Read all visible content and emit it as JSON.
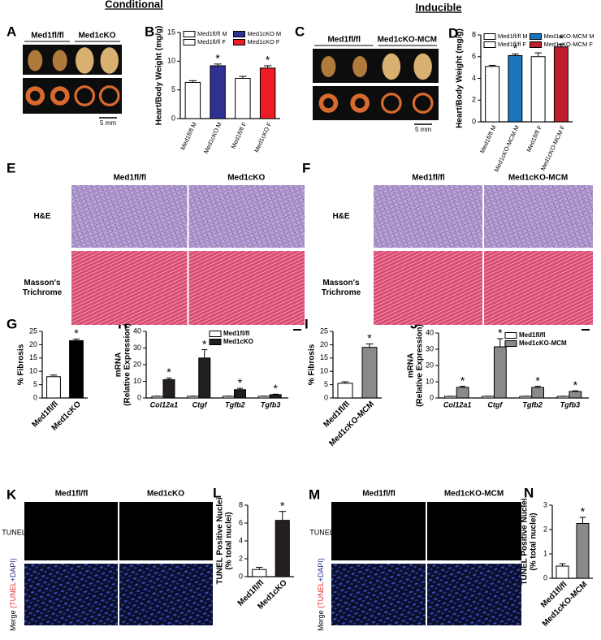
{
  "figure": {
    "headers": {
      "conditional": "Conditional",
      "inducible": "Inducible"
    },
    "panel_letters": [
      "A",
      "B",
      "C",
      "D",
      "E",
      "F",
      "G",
      "H",
      "I",
      "J",
      "K",
      "L",
      "M",
      "N"
    ],
    "photos": {
      "A": {
        "groups": [
          "Med1fl/fl",
          "Med1cKO"
        ],
        "scale": "5 mm"
      },
      "C": {
        "groups": [
          "Med1fl/fl",
          "Med1cKO-MCM"
        ],
        "scale": "5 mm"
      },
      "E": {
        "columns": [
          "Med1fl/fl",
          "Med1cKO"
        ],
        "rows": [
          [
            "H&E"
          ],
          [
            "Masson's",
            "Trichrome"
          ]
        ]
      },
      "F": {
        "columns": [
          "Med1fl/fl",
          "Med1cKO-MCM"
        ],
        "rows": [
          [
            "H&E"
          ],
          [
            "Masson's",
            "Trichrome"
          ]
        ]
      },
      "K": {
        "columns": [
          "Med1fl/fl",
          "Med1cKO"
        ],
        "row": "TUNEL",
        "merge": [
          "Merge ",
          "(TUNEL",
          "+DAPI)"
        ]
      },
      "M": {
        "columns": [
          "Med1fl/fl",
          "Med1cKO-MCM"
        ],
        "row": "TUNEL",
        "merge": [
          "Merge ",
          "(TUNEL",
          "+DAPI)"
        ]
      }
    }
  },
  "chart_data": [
    {
      "type": "bar",
      "ylabel": "Heart/Body Weight (mg/g)",
      "categories": [
        "Med1fl/fl M",
        "Med1cKO M",
        "Med1fl/fl F",
        "Med1cKO F"
      ],
      "values": [
        6.3,
        9.2,
        7.0,
        8.8
      ],
      "errors": [
        0.3,
        0.3,
        0.35,
        0.4
      ],
      "colors": [
        "#ffffff",
        "#2e3192",
        "#ffffff",
        "#ed1c24"
      ],
      "significance": [
        null,
        "*",
        null,
        "*"
      ],
      "legend": true,
      "ylim": [
        0,
        15
      ],
      "yticks": [
        0,
        5,
        10,
        15
      ]
    },
    {
      "type": "bar",
      "ylabel": "Heart/Body Weight (mg/g)",
      "categories": [
        "Med1fl/fl M",
        "Med1cKO-MCM M",
        "Med1fl/fl F",
        "Med1cKO-MCM F"
      ],
      "values": [
        5.1,
        6.1,
        6.0,
        6.9
      ],
      "errors": [
        0.1,
        0.15,
        0.35,
        0.25
      ],
      "colors": [
        "#ffffff",
        "#1b75bc",
        "#ffffff",
        "#be1e2d"
      ],
      "significance": [
        null,
        "*",
        null,
        "*"
      ],
      "legend": true,
      "ylim": [
        0,
        8
      ],
      "yticks": [
        0,
        2,
        4,
        6,
        8
      ]
    },
    {
      "type": "bar",
      "ylabel": "% Fibrosis",
      "categories": [
        "Med1fl/fl",
        "Med1cKO"
      ],
      "values": [
        8,
        21.5
      ],
      "errors": [
        0.6,
        0.6
      ],
      "colors": [
        "#ffffff",
        "#000000"
      ],
      "significance": [
        null,
        "*"
      ],
      "ylim": [
        0,
        25
      ],
      "yticks": [
        0,
        5,
        10,
        15,
        20,
        25
      ]
    },
    {
      "type": "bar",
      "ylabel": [
        "mRNA",
        "(Relative Expression)"
      ],
      "categories": [
        "Col12a1",
        "Ctgf",
        "Tgfb2",
        "Tgfb3"
      ],
      "series": [
        {
          "name": "Med1fl/fl",
          "color": "#ffffff",
          "values": [
            1,
            1,
            1,
            1
          ],
          "errors": [
            0.1,
            0.1,
            0.1,
            0.1
          ],
          "significance": [
            null,
            null,
            null,
            null
          ]
        },
        {
          "name": "Med1cKO",
          "color": "#231f20",
          "values": [
            11,
            24,
            5,
            2
          ],
          "errors": [
            1,
            5,
            0.8,
            0.3
          ],
          "significance": [
            "*",
            "*",
            "*",
            "*"
          ]
        }
      ],
      "ylim": [
        0,
        40
      ],
      "yticks": [
        0,
        10,
        20,
        30,
        40
      ]
    },
    {
      "type": "bar",
      "ylabel": "% Fibrosis",
      "categories": [
        "Med1fl/fl",
        "Med1cKO-MCM"
      ],
      "values": [
        5.5,
        19
      ],
      "errors": [
        0.6,
        1.3
      ],
      "colors": [
        "#ffffff",
        "#8a8a8a"
      ],
      "significance": [
        null,
        "*"
      ],
      "ylim": [
        0,
        25
      ],
      "yticks": [
        0,
        5,
        10,
        15,
        20,
        25
      ]
    },
    {
      "type": "bar",
      "ylabel": [
        "mRNA",
        "(Relative Expression)"
      ],
      "categories": [
        "Col12a1",
        "Ctgf",
        "Tgfb2",
        "Tgfb3"
      ],
      "series": [
        {
          "name": "Med1fl/fl",
          "color": "#ffffff",
          "values": [
            1,
            1,
            1,
            1
          ],
          "errors": [
            0.1,
            0.1,
            0.1,
            0.1
          ],
          "significance": [
            null,
            null,
            null,
            null
          ]
        },
        {
          "name": "Med1cKO-MCM",
          "color": "#8a8a8a",
          "values": [
            6.5,
            31.5,
            6.5,
            4
          ],
          "errors": [
            0.7,
            5,
            0.7,
            0.4
          ],
          "significance": [
            "*",
            "*",
            "*",
            "*"
          ]
        }
      ],
      "ylim": [
        0,
        40
      ],
      "yticks": [
        0,
        10,
        20,
        30,
        40
      ]
    },
    {
      "type": "bar",
      "ylabel": [
        "TUNEL Positive Nuclei",
        "(% total nuclei)"
      ],
      "categories": [
        "Med1fl/fl",
        "Med1cKO"
      ],
      "values": [
        0.8,
        6.3
      ],
      "errors": [
        0.25,
        1.0
      ],
      "colors": [
        "#ffffff",
        "#231f20"
      ],
      "significance": [
        null,
        "*"
      ],
      "ylim": [
        0,
        8
      ],
      "yticks": [
        0,
        2,
        4,
        6,
        8
      ]
    },
    {
      "type": "bar",
      "ylabel": [
        "TUNEL Positive Nuclei",
        "(% total nuclei)"
      ],
      "categories": [
        "Med1fl/fl",
        "Med1cKO-MCM"
      ],
      "values": [
        0.5,
        2.25
      ],
      "errors": [
        0.1,
        0.25
      ],
      "colors": [
        "#ffffff",
        "#8a8a8a"
      ],
      "significance": [
        null,
        "*"
      ],
      "ylim": [
        0,
        3
      ],
      "yticks": [
        0,
        1,
        2,
        3
      ]
    }
  ]
}
